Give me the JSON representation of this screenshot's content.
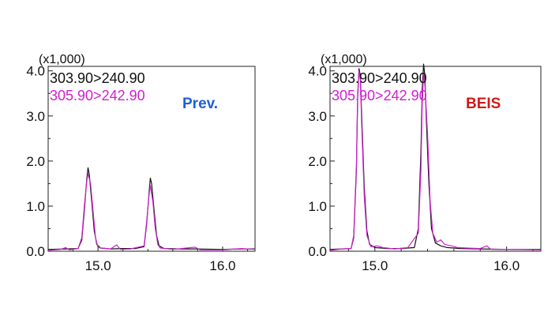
{
  "chart_data": [
    {
      "type": "line",
      "multiplier_label": "(x1,000)",
      "annotation": "Prev.",
      "annotation_color": "#1f5fd6",
      "xlim": [
        14.6,
        16.26
      ],
      "ylim": [
        0,
        4.1
      ],
      "xticks": [
        15.0,
        16.0
      ],
      "xtick_labels": [
        "15.0",
        "16.0"
      ],
      "yticks": [
        0,
        1,
        2,
        3,
        4
      ],
      "ytick_labels": [
        "0.0",
        "1.0",
        "2.0",
        "3.0",
        "4.0"
      ],
      "grid": false,
      "legend_position": "top-left",
      "series": [
        {
          "name": "303.90>240.90",
          "color": "#111111",
          "points": [
            [
              14.6,
              0.04
            ],
            [
              14.75,
              0.05
            ],
            [
              14.84,
              0.06
            ],
            [
              14.87,
              0.25
            ],
            [
              14.89,
              0.9
            ],
            [
              14.91,
              1.6
            ],
            [
              14.92,
              1.85
            ],
            [
              14.93,
              1.7
            ],
            [
              14.95,
              1.1
            ],
            [
              14.97,
              0.45
            ],
            [
              14.99,
              0.15
            ],
            [
              15.02,
              0.07
            ],
            [
              15.1,
              0.05
            ],
            [
              15.2,
              0.06
            ],
            [
              15.3,
              0.06
            ],
            [
              15.37,
              0.1
            ],
            [
              15.39,
              0.6
            ],
            [
              15.41,
              1.3
            ],
            [
              15.42,
              1.62
            ],
            [
              15.43,
              1.5
            ],
            [
              15.45,
              0.9
            ],
            [
              15.47,
              0.35
            ],
            [
              15.49,
              0.12
            ],
            [
              15.53,
              0.06
            ],
            [
              15.65,
              0.05
            ],
            [
              15.8,
              0.05
            ],
            [
              16.0,
              0.04
            ],
            [
              16.15,
              0.05
            ],
            [
              16.26,
              0.05
            ]
          ]
        },
        {
          "name": "305.90>242.90",
          "color": "#d020d0",
          "points": [
            [
              14.6,
              0.02
            ],
            [
              14.7,
              0.04
            ],
            [
              14.74,
              0.08
            ],
            [
              14.77,
              0.03
            ],
            [
              14.84,
              0.06
            ],
            [
              14.87,
              0.3
            ],
            [
              14.89,
              1.0
            ],
            [
              14.91,
              1.55
            ],
            [
              14.92,
              1.72
            ],
            [
              14.94,
              1.5
            ],
            [
              14.96,
              0.9
            ],
            [
              14.98,
              0.3
            ],
            [
              15.0,
              0.08
            ],
            [
              15.1,
              0.05
            ],
            [
              15.15,
              0.14
            ],
            [
              15.18,
              0.04
            ],
            [
              15.26,
              0.05
            ],
            [
              15.37,
              0.12
            ],
            [
              15.39,
              0.65
            ],
            [
              15.41,
              1.25
            ],
            [
              15.42,
              1.45
            ],
            [
              15.44,
              1.1
            ],
            [
              15.46,
              0.5
            ],
            [
              15.48,
              0.15
            ],
            [
              15.5,
              0.07
            ],
            [
              15.6,
              0.04
            ],
            [
              15.78,
              0.09
            ],
            [
              15.82,
              0.03
            ],
            [
              16.0,
              0.03
            ],
            [
              16.15,
              0.06
            ],
            [
              16.26,
              0.04
            ]
          ]
        }
      ]
    },
    {
      "type": "line",
      "multiplier_label": "(x1,000)",
      "annotation": "BEIS",
      "annotation_color": "#d01a1a",
      "xlim": [
        14.66,
        16.26
      ],
      "ylim": [
        0,
        4.1
      ],
      "xticks": [
        15.0,
        16.0
      ],
      "xtick_labels": [
        "15.0",
        "16.0"
      ],
      "yticks": [
        0,
        1,
        2,
        3,
        4
      ],
      "ytick_labels": [
        "0.0",
        "1.0",
        "2.0",
        "3.0",
        "4.0"
      ],
      "grid": false,
      "legend_position": "top-left",
      "series": [
        {
          "name": "303.90>240.90",
          "color": "#111111",
          "points": [
            [
              14.66,
              0.04
            ],
            [
              14.75,
              0.05
            ],
            [
              14.82,
              0.06
            ],
            [
              14.84,
              0.3
            ],
            [
              14.86,
              1.8
            ],
            [
              14.87,
              3.4
            ],
            [
              14.88,
              4.05
            ],
            [
              14.89,
              3.9
            ],
            [
              14.9,
              3.0
            ],
            [
              14.92,
              1.4
            ],
            [
              14.94,
              0.45
            ],
            [
              14.96,
              0.15
            ],
            [
              15.0,
              0.08
            ],
            [
              15.1,
              0.06
            ],
            [
              15.2,
              0.06
            ],
            [
              15.3,
              0.08
            ],
            [
              15.33,
              0.5
            ],
            [
              15.35,
              2.2
            ],
            [
              15.36,
              3.6
            ],
            [
              15.37,
              4.15
            ],
            [
              15.38,
              3.9
            ],
            [
              15.39,
              3.0
            ],
            [
              15.41,
              1.5
            ],
            [
              15.43,
              0.5
            ],
            [
              15.46,
              0.18
            ],
            [
              15.5,
              0.12
            ],
            [
              15.55,
              0.08
            ],
            [
              15.65,
              0.06
            ],
            [
              15.8,
              0.05
            ],
            [
              16.0,
              0.04
            ],
            [
              16.26,
              0.04
            ]
          ]
        },
        {
          "name": "305.90>242.90",
          "color": "#d020d0",
          "points": [
            [
              14.66,
              0.02
            ],
            [
              14.75,
              0.05
            ],
            [
              14.82,
              0.06
            ],
            [
              14.84,
              0.35
            ],
            [
              14.86,
              1.9
            ],
            [
              14.87,
              3.5
            ],
            [
              14.88,
              4.0
            ],
            [
              14.89,
              3.8
            ],
            [
              14.9,
              2.8
            ],
            [
              14.92,
              1.2
            ],
            [
              14.94,
              0.35
            ],
            [
              14.97,
              0.1
            ],
            [
              15.02,
              0.12
            ],
            [
              15.06,
              0.08
            ],
            [
              15.15,
              0.05
            ],
            [
              15.25,
              0.08
            ],
            [
              15.33,
              0.4
            ],
            [
              15.35,
              1.8
            ],
            [
              15.36,
              3.3
            ],
            [
              15.37,
              3.95
            ],
            [
              15.38,
              3.7
            ],
            [
              15.4,
              2.6
            ],
            [
              15.42,
              1.1
            ],
            [
              15.44,
              0.4
            ],
            [
              15.47,
              0.2
            ],
            [
              15.5,
              0.25
            ],
            [
              15.53,
              0.15
            ],
            [
              15.58,
              0.12
            ],
            [
              15.63,
              0.08
            ],
            [
              15.7,
              0.07
            ],
            [
              15.8,
              0.06
            ],
            [
              15.85,
              0.12
            ],
            [
              15.88,
              0.04
            ],
            [
              16.0,
              0.04
            ],
            [
              16.26,
              0.03
            ]
          ]
        }
      ]
    }
  ]
}
